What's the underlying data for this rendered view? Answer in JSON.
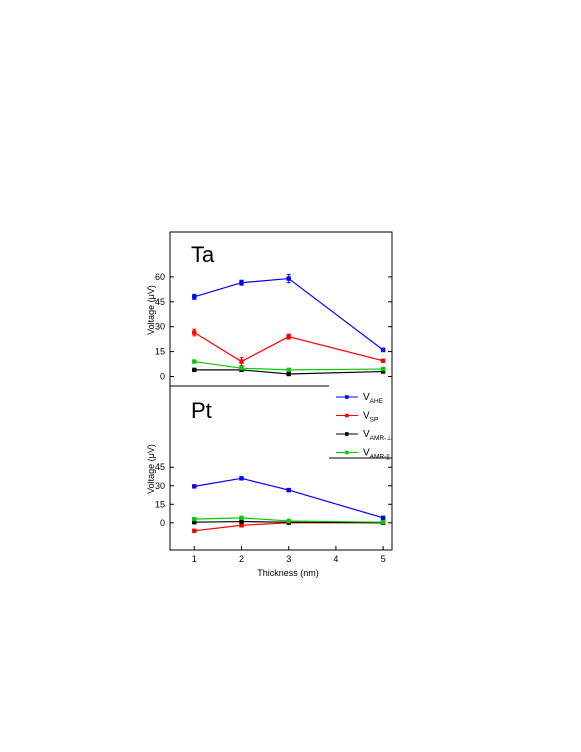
{
  "chart_data": {
    "type": "line",
    "xlabel": "Thickness (nm)",
    "x_ticks": [
      1,
      2,
      3,
      4,
      5
    ],
    "x_tick_labels": [
      "1",
      "2",
      "3",
      "4",
      "5"
    ],
    "xlim": [
      0.8,
      5.2
    ],
    "legend": {
      "placement": "right, between panels",
      "entries": [
        {
          "main": "V",
          "sub": "AHE",
          "color": "#0000ff"
        },
        {
          "main": "V",
          "sub": "SP",
          "color": "#ff0000"
        },
        {
          "main": "V",
          "sub": "AMR-⊥",
          "color": "#000000"
        },
        {
          "main": "V",
          "sub": "AMR-||",
          "color": "#00cc00"
        }
      ]
    },
    "panels": [
      {
        "label": "Ta",
        "ylabel": "Voltage (μV)",
        "ylim": [
          -5,
          70
        ],
        "y_ticks": [
          0,
          15,
          30,
          45,
          60
        ],
        "y_tick_labels": [
          "0",
          "15",
          "30",
          "45",
          "60"
        ],
        "x": [
          1,
          2,
          3,
          5
        ],
        "series": [
          {
            "key": "AHE",
            "color": "#0000ff",
            "values": [
              48,
              56.5,
              59,
              16
            ],
            "errors": [
              1.5,
              1.5,
              2.5,
              1
            ]
          },
          {
            "key": "SP",
            "color": "#ff0000",
            "values": [
              26.5,
              9,
              24,
              9.5
            ],
            "errors": [
              2,
              2.5,
              1.5,
              0.5
            ]
          },
          {
            "key": "AMR-perp",
            "color": "#000000",
            "values": [
              4,
              4,
              1.5,
              3
            ],
            "errors": [
              0.3,
              0.3,
              0.3,
              0.3
            ]
          },
          {
            "key": "AMR-par",
            "color": "#00cc00",
            "values": [
              9,
              5,
              4,
              4.5
            ],
            "errors": [
              0.5,
              0.5,
              0.5,
              0.5
            ]
          }
        ]
      },
      {
        "label": "Pt",
        "ylabel": "Voltage (μV)",
        "ylim": [
          -8,
          55
        ],
        "y_ticks": [
          0,
          15,
          30,
          45
        ],
        "y_tick_labels": [
          "0",
          "15",
          "30",
          "45"
        ],
        "x": [
          1,
          2,
          3,
          5
        ],
        "series": [
          {
            "key": "AHE",
            "color": "#0000ff",
            "values": [
              29.5,
              36,
              26.5,
              4
            ],
            "errors": [
              0.5,
              0.6,
              0.5,
              0.4
            ]
          },
          {
            "key": "SP",
            "color": "#ff0000",
            "values": [
              -6.5,
              -2,
              0,
              0
            ],
            "errors": [
              1.2,
              1.2,
              0.5,
              0.3
            ]
          },
          {
            "key": "AMR-perp",
            "color": "#000000",
            "values": [
              0.5,
              1,
              0.5,
              0
            ],
            "errors": [
              0.2,
              0.2,
              0.2,
              0.2
            ]
          },
          {
            "key": "AMR-par",
            "color": "#00cc00",
            "values": [
              3,
              4,
              1.5,
              0.5
            ],
            "errors": [
              0.5,
              0.7,
              0.4,
              0.3
            ]
          }
        ]
      }
    ]
  }
}
